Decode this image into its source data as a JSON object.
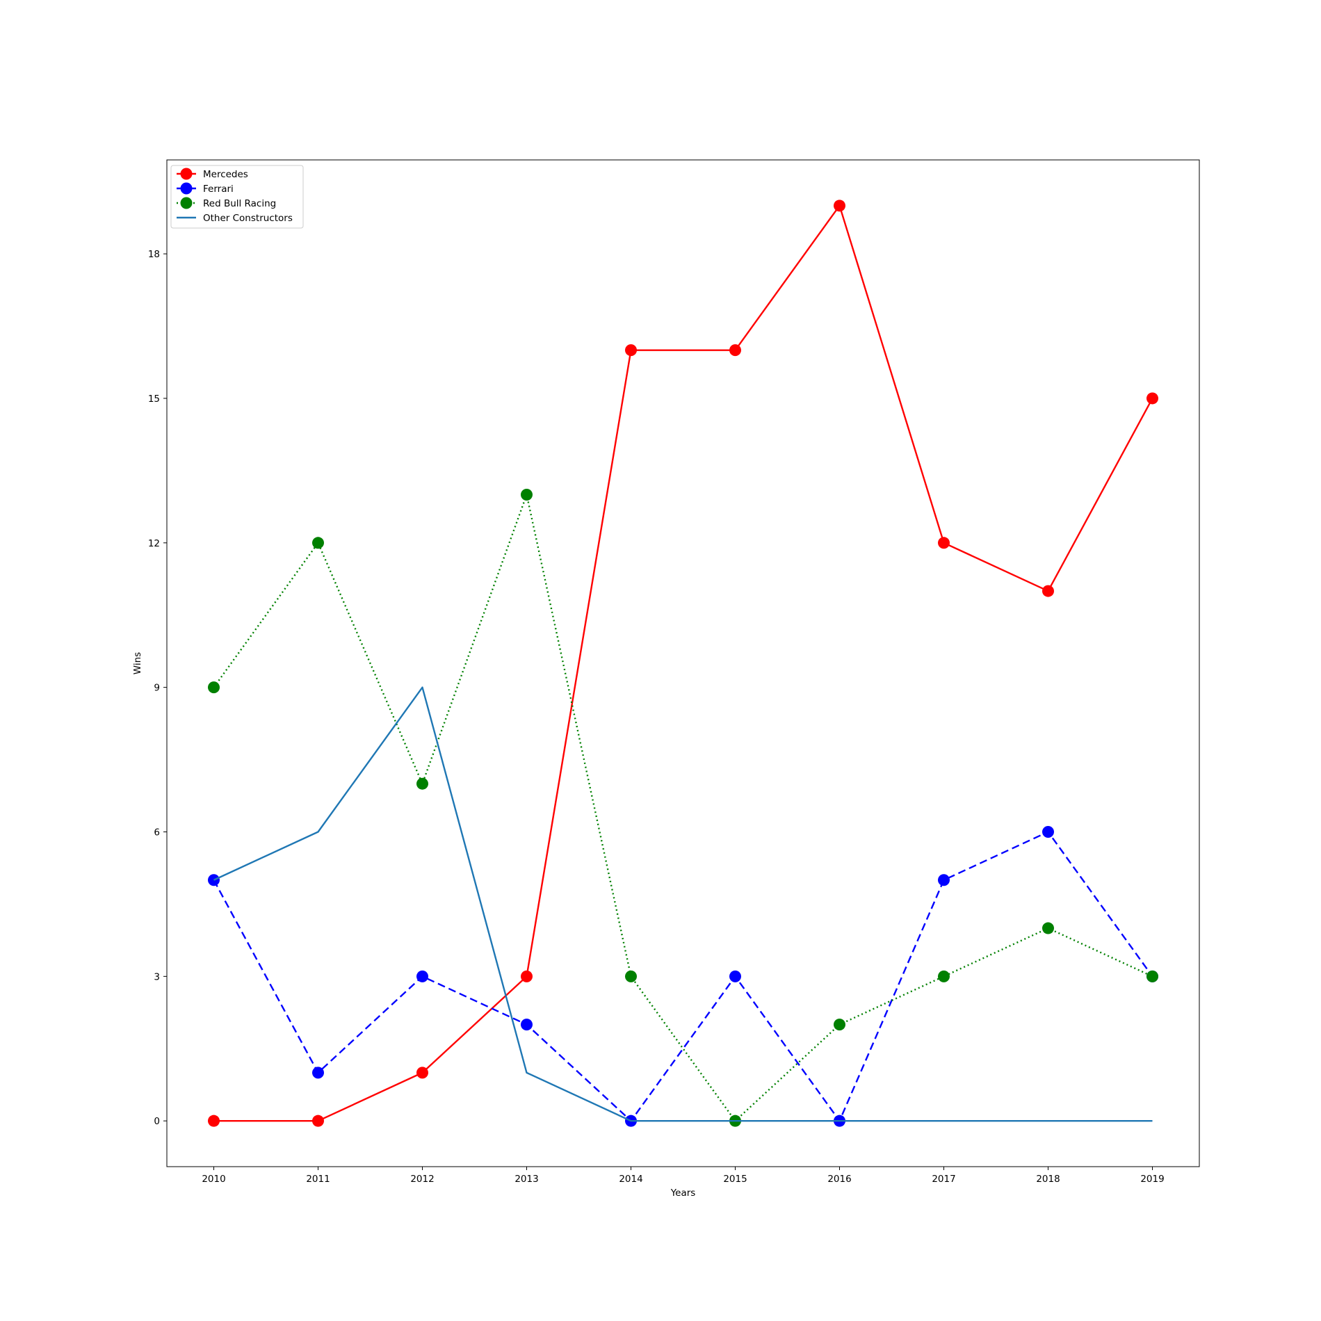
{
  "chart_data": {
    "type": "line",
    "title": "",
    "xlabel": "Years",
    "ylabel": "Wins",
    "x": [
      2010,
      2011,
      2012,
      2013,
      2014,
      2015,
      2016,
      2017,
      2018,
      2019
    ],
    "x_tick_labels": [
      "2010",
      "2011",
      "2012",
      "2013",
      "2014",
      "2015",
      "2016",
      "2017",
      "2018",
      "2019"
    ],
    "y_ticks": [
      0,
      3,
      6,
      9,
      12,
      15,
      18
    ],
    "y_tick_labels": [
      "0",
      "3",
      "6",
      "9",
      "12",
      "15",
      "18"
    ],
    "xlim": [
      2009.55,
      2019.45
    ],
    "ylim": [
      -0.95,
      19.95
    ],
    "grid": false,
    "legend_position": "top-left",
    "series": [
      {
        "name": "Mercedes",
        "color": "#ff0000",
        "line_style": "solid",
        "marker": "circle",
        "values": [
          0,
          0,
          1,
          3,
          16,
          16,
          19,
          12,
          11,
          15
        ]
      },
      {
        "name": "Ferrari",
        "color": "#0000ff",
        "line_style": "dashed",
        "marker": "circle",
        "values": [
          5,
          1,
          3,
          2,
          0,
          3,
          0,
          5,
          6,
          3
        ]
      },
      {
        "name": "Red Bull Racing",
        "color": "#008000",
        "line_style": "dotted",
        "marker": "circle",
        "values": [
          9,
          12,
          7,
          13,
          3,
          0,
          2,
          3,
          4,
          3
        ]
      },
      {
        "name": "Other Constructors",
        "color": "#1f77b4",
        "line_style": "solid",
        "marker": "none",
        "values": [
          5,
          6,
          9,
          1,
          0,
          0,
          0,
          0,
          0,
          0
        ]
      }
    ]
  }
}
